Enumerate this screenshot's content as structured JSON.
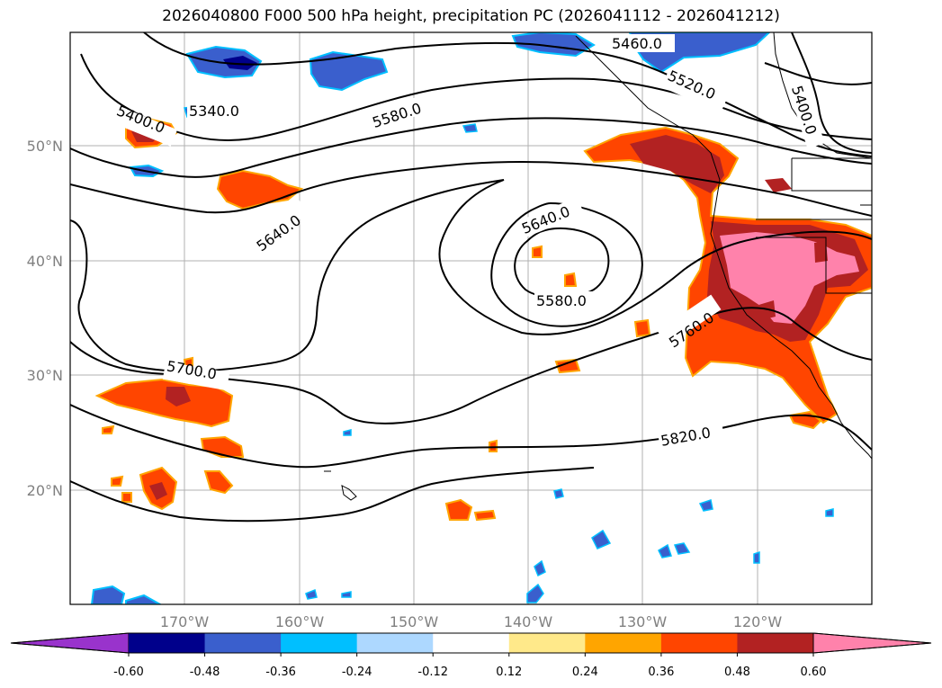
{
  "title": "2026040800 F000 500 hPa height, precipitation PC (2026041112 - 2026041212)",
  "lat_labels": [
    "50°N",
    "40°N",
    "30°N",
    "20°N"
  ],
  "lon_labels": [
    "170°W",
    "160°W",
    "150°W",
    "140°W",
    "130°W",
    "120°W"
  ],
  "contour_labels": [
    "5460.0",
    "5520.0",
    "5400.0",
    "5340.0",
    "5400.0",
    "5580.0",
    "5640.0",
    "5640.0",
    "5580.0",
    "5700.0",
    "5760.0",
    "5820.0"
  ],
  "colorbar": {
    "labels": [
      "-0.60",
      "-0.48",
      "-0.36",
      "-0.24",
      "-0.12",
      "0.12",
      "0.24",
      "0.36",
      "0.48",
      "0.60"
    ],
    "colors": [
      "#9933cc",
      "#00008b",
      "#3a5fcd",
      "#00bfff",
      "#add8ff",
      "#ffffff",
      "#ffe98a",
      "#ffa500",
      "#ff4500",
      "#b22222",
      "#ff82ab"
    ]
  }
}
